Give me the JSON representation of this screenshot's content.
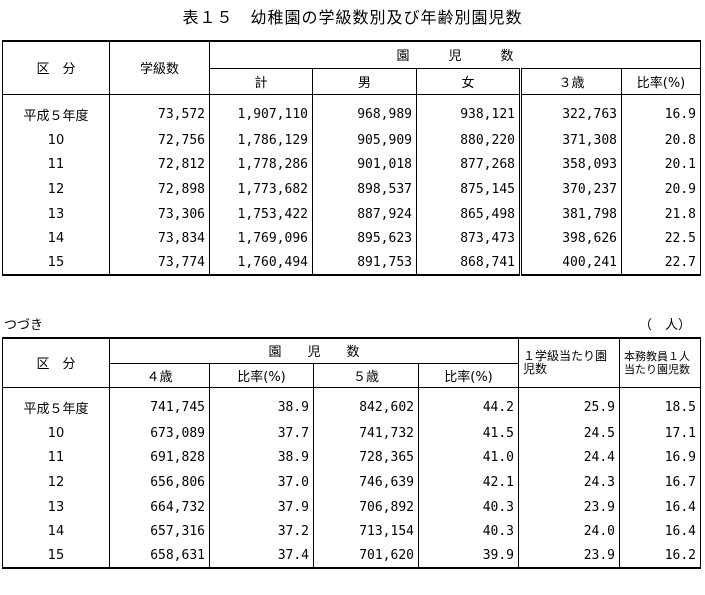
{
  "title": "表１５　幼稚園の学級数別及び年齢別園児数",
  "table1": {
    "col_kubun": "区　分",
    "col_gakkyu": "学級数",
    "group_enji": "園　　　児　　　数",
    "sub": [
      "計",
      "男",
      "女",
      "３歳",
      "比率(%)"
    ],
    "rows": [
      {
        "label": "平成５年度",
        "v": [
          "73,572",
          "1,907,110",
          "968,989",
          "938,121",
          "322,763",
          "16.9"
        ]
      },
      {
        "label": "10",
        "v": [
          "72,756",
          "1,786,129",
          "905,909",
          "880,220",
          "371,308",
          "20.8"
        ]
      },
      {
        "label": "11",
        "v": [
          "72,812",
          "1,778,286",
          "901,018",
          "877,268",
          "358,093",
          "20.1"
        ]
      },
      {
        "label": "12",
        "v": [
          "72,898",
          "1,773,682",
          "898,537",
          "875,145",
          "370,237",
          "20.9"
        ]
      },
      {
        "label": "13",
        "v": [
          "73,306",
          "1,753,422",
          "887,924",
          "865,498",
          "381,798",
          "21.8"
        ]
      },
      {
        "label": "14",
        "v": [
          "73,834",
          "1,769,096",
          "895,623",
          "873,473",
          "398,626",
          "22.5"
        ]
      },
      {
        "label": "15",
        "v": [
          "73,774",
          "1,760,494",
          "891,753",
          "868,741",
          "400,241",
          "22.7"
        ]
      }
    ]
  },
  "continued": "つづき",
  "unit": "（　人）",
  "table2": {
    "col_kubun": "区　分",
    "group_enji": "園　　児　　数",
    "sub": [
      "４歳",
      "比率(%)",
      "５歳",
      "比率(%)"
    ],
    "col_per_class": "１学級当たり園児数",
    "col_per_teacher": "本務教員１人当たり園児数",
    "rows": [
      {
        "label": "平成５年度",
        "v": [
          "741,745",
          "38.9",
          "842,602",
          "44.2",
          "25.9",
          "18.5"
        ]
      },
      {
        "label": "10",
        "v": [
          "673,089",
          "37.7",
          "741,732",
          "41.5",
          "24.5",
          "17.1"
        ]
      },
      {
        "label": "11",
        "v": [
          "691,828",
          "38.9",
          "728,365",
          "41.0",
          "24.4",
          "16.9"
        ]
      },
      {
        "label": "12",
        "v": [
          "656,806",
          "37.0",
          "746,639",
          "42.1",
          "24.3",
          "16.7"
        ]
      },
      {
        "label": "13",
        "v": [
          "664,732",
          "37.9",
          "706,892",
          "40.3",
          "23.9",
          "16.4"
        ]
      },
      {
        "label": "14",
        "v": [
          "657,316",
          "37.2",
          "713,154",
          "40.3",
          "24.0",
          "16.4"
        ]
      },
      {
        "label": "15",
        "v": [
          "658,631",
          "37.4",
          "701,620",
          "39.9",
          "23.9",
          "16.2"
        ]
      }
    ]
  }
}
